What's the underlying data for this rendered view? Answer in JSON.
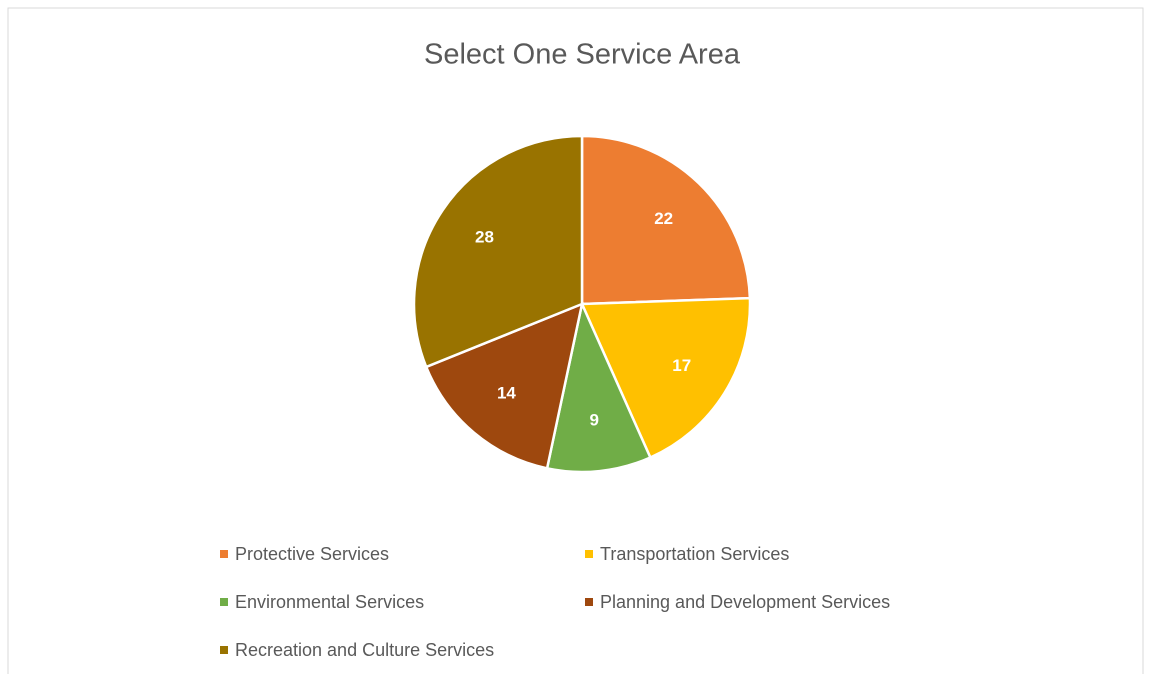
{
  "chart_data": {
    "type": "pie",
    "title": "Select One Service Area",
    "categories": [
      "Protective Services",
      "Transportation Services",
      "Environmental Services",
      "Planning and Development Services",
      "Recreation and Culture Services"
    ],
    "values": [
      22,
      17,
      9,
      14,
      28
    ],
    "colors": [
      "#ED7D31",
      "#FFC000",
      "#70AD47",
      "#9E480E",
      "#997300"
    ],
    "legend": "bottom"
  }
}
